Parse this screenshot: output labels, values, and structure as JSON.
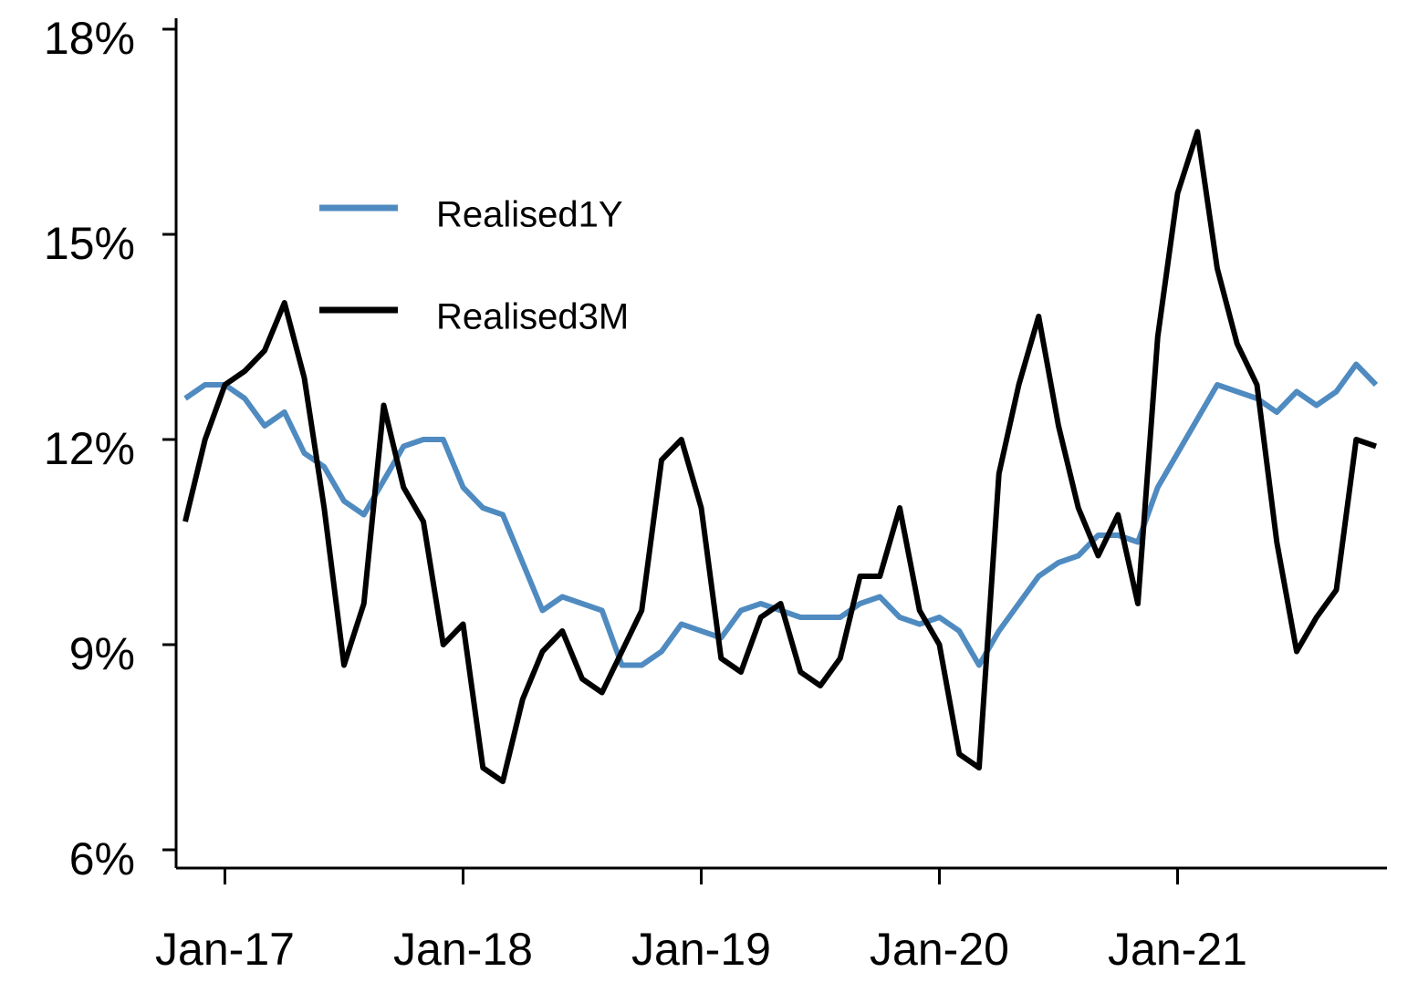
{
  "chart_data": {
    "type": "line",
    "x": [
      "Nov-16",
      "Dec-16",
      "Jan-17",
      "Feb-17",
      "Mar-17",
      "Apr-17",
      "May-17",
      "Jun-17",
      "Jul-17",
      "Aug-17",
      "Sep-17",
      "Oct-17",
      "Nov-17",
      "Dec-17",
      "Jan-18",
      "Feb-18",
      "Mar-18",
      "Apr-18",
      "May-18",
      "Jun-18",
      "Jul-18",
      "Aug-18",
      "Sep-18",
      "Oct-18",
      "Nov-18",
      "Dec-18",
      "Jan-19",
      "Feb-19",
      "Mar-19",
      "Apr-19",
      "May-19",
      "Jun-19",
      "Jul-19",
      "Aug-19",
      "Sep-19",
      "Oct-19",
      "Nov-19",
      "Dec-19",
      "Jan-20",
      "Feb-20",
      "Mar-20",
      "Apr-20",
      "May-20",
      "Jun-20",
      "Jul-20",
      "Aug-20",
      "Sep-20",
      "Oct-20",
      "Nov-20",
      "Dec-20",
      "Jan-21",
      "Feb-21",
      "Mar-21",
      "Apr-21",
      "May-21",
      "Jun-21",
      "Jul-21",
      "Aug-21",
      "Sep-21",
      "Oct-21",
      "Nov-21"
    ],
    "series": [
      {
        "name": "Realised1Y",
        "color": "#4f8bc0",
        "values": [
          12.6,
          12.8,
          12.8,
          12.6,
          12.2,
          12.4,
          11.8,
          11.6,
          11.1,
          10.9,
          11.4,
          11.9,
          12.0,
          12.0,
          11.3,
          11.0,
          10.9,
          10.2,
          9.5,
          9.7,
          9.6,
          9.5,
          8.7,
          8.7,
          8.9,
          9.3,
          9.2,
          9.1,
          9.5,
          9.6,
          9.5,
          9.4,
          9.4,
          9.4,
          9.6,
          9.7,
          9.4,
          9.3,
          9.4,
          9.2,
          8.7,
          9.2,
          9.6,
          10.0,
          10.2,
          10.3,
          10.6,
          10.6,
          10.5,
          11.3,
          11.8,
          12.3,
          12.8,
          12.7,
          12.6,
          12.4,
          12.7,
          12.5,
          12.7,
          13.1,
          12.8
        ]
      },
      {
        "name": "Realised3M",
        "color": "#000000",
        "values": [
          10.8,
          12.0,
          12.8,
          13.0,
          13.3,
          14.0,
          12.9,
          11.0,
          8.7,
          9.6,
          12.5,
          11.3,
          10.8,
          9.0,
          9.3,
          7.2,
          7.0,
          8.2,
          8.9,
          9.2,
          8.5,
          8.3,
          8.9,
          9.5,
          11.7,
          12.0,
          11.0,
          8.8,
          8.6,
          9.4,
          9.6,
          8.6,
          8.4,
          8.8,
          10.0,
          10.0,
          11.0,
          9.5,
          9.0,
          7.4,
          7.2,
          11.5,
          12.8,
          13.8,
          12.2,
          11.0,
          10.3,
          10.9,
          9.6,
          13.5,
          15.6,
          16.5,
          14.5,
          13.4,
          12.8,
          10.5,
          8.9,
          9.4,
          9.8,
          12.0,
          11.9
        ]
      }
    ],
    "xlim": [
      "Nov-16",
      "Nov-21"
    ],
    "xticks": [
      "Jan-17",
      "Jan-18",
      "Jan-19",
      "Jan-20",
      "Jan-21"
    ],
    "ylim": [
      6,
      18
    ],
    "yticks": [
      {
        "value": 6,
        "label": "6%"
      },
      {
        "value": 9,
        "label": "9%"
      },
      {
        "value": 12,
        "label": "12%"
      },
      {
        "value": 15,
        "label": "15%"
      },
      {
        "value": 18,
        "label": "18%"
      }
    ],
    "legend": "upper-left"
  }
}
